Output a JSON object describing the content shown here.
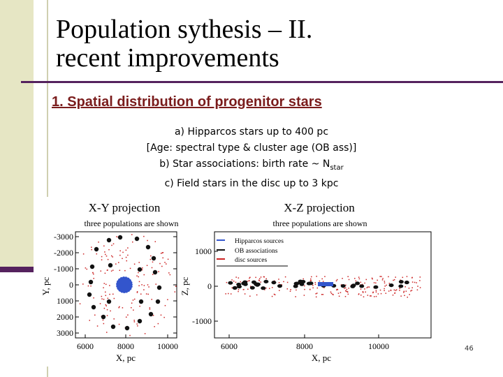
{
  "slide": {
    "title_line1": "Population sythesis –  II.",
    "title_line2": "recent improvements",
    "subheading": "1. Spatial distribution of progenitor stars",
    "bullet_a": "a) Hipparcos stars up to 400 pc",
    "bullet_a2": "[Age: spectral type & cluster age (OB ass)]",
    "bullet_b_main": "b) Star associations: birth rate ~ N",
    "bullet_b_sub": "star",
    "bullet_c": "c) Field stars in the disc up to 3 kpc",
    "page_number": "46"
  },
  "figure": {
    "xy": {
      "title": "X-Y projection",
      "subtitle": "three populations are shown",
      "xlabel": "X, pc",
      "ylabel": "Y, pc",
      "xticks": [
        "6000",
        "8000",
        "10000"
      ],
      "yticks": [
        "-3000",
        "-2000",
        "-1000",
        "0",
        "1000",
        "2000",
        "3000"
      ]
    },
    "xz": {
      "title": "X-Z projection",
      "subtitle": "three populations are shown",
      "xlabel": "X, pc",
      "ylabel": "Z, pc",
      "xticks": [
        "6000",
        "8000",
        "10000"
      ],
      "yticks": [
        "1000",
        "0",
        "-1000"
      ],
      "legend": [
        "Hipparcos sources",
        "OB associations",
        "disc sources"
      ]
    },
    "colors": {
      "hipparcos": "#3355cc",
      "ob": "#111111",
      "disc": "#cc2222"
    }
  }
}
